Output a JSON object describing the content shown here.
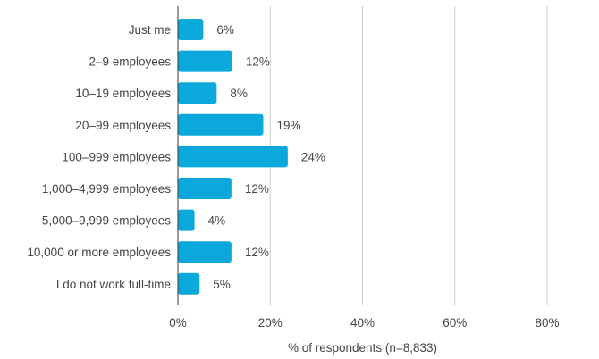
{
  "chart_data": {
    "type": "bar",
    "orientation": "horizontal",
    "categories": [
      "Just me",
      "2–9 employees",
      "10–19 employees",
      "20–99 employees",
      "100–999 employees",
      "1,000–4,999 employees",
      "5,000–9,999 employees",
      "10,000 or more employees",
      "I do not work full-time"
    ],
    "values": [
      5.5,
      11.8,
      8.4,
      18.5,
      23.8,
      11.6,
      3.6,
      11.6,
      4.7
    ],
    "value_labels": [
      "6%",
      "12%",
      "8%",
      "19%",
      "24%",
      "12%",
      "4%",
      "12%",
      "5%"
    ],
    "xlim": [
      0,
      80
    ],
    "xticks": [
      0,
      20,
      40,
      60,
      80
    ],
    "xtick_labels": [
      "0%",
      "20%",
      "40%",
      "60%",
      "80%"
    ],
    "xlabel": "% of respondents (n=8,833)",
    "ylabel": "",
    "title": "",
    "grid": "vertical",
    "legend": "none",
    "colors": {
      "bar": "#0aa8db",
      "grid": "#cccccc",
      "axis": "#333333",
      "text": "#444444"
    }
  }
}
